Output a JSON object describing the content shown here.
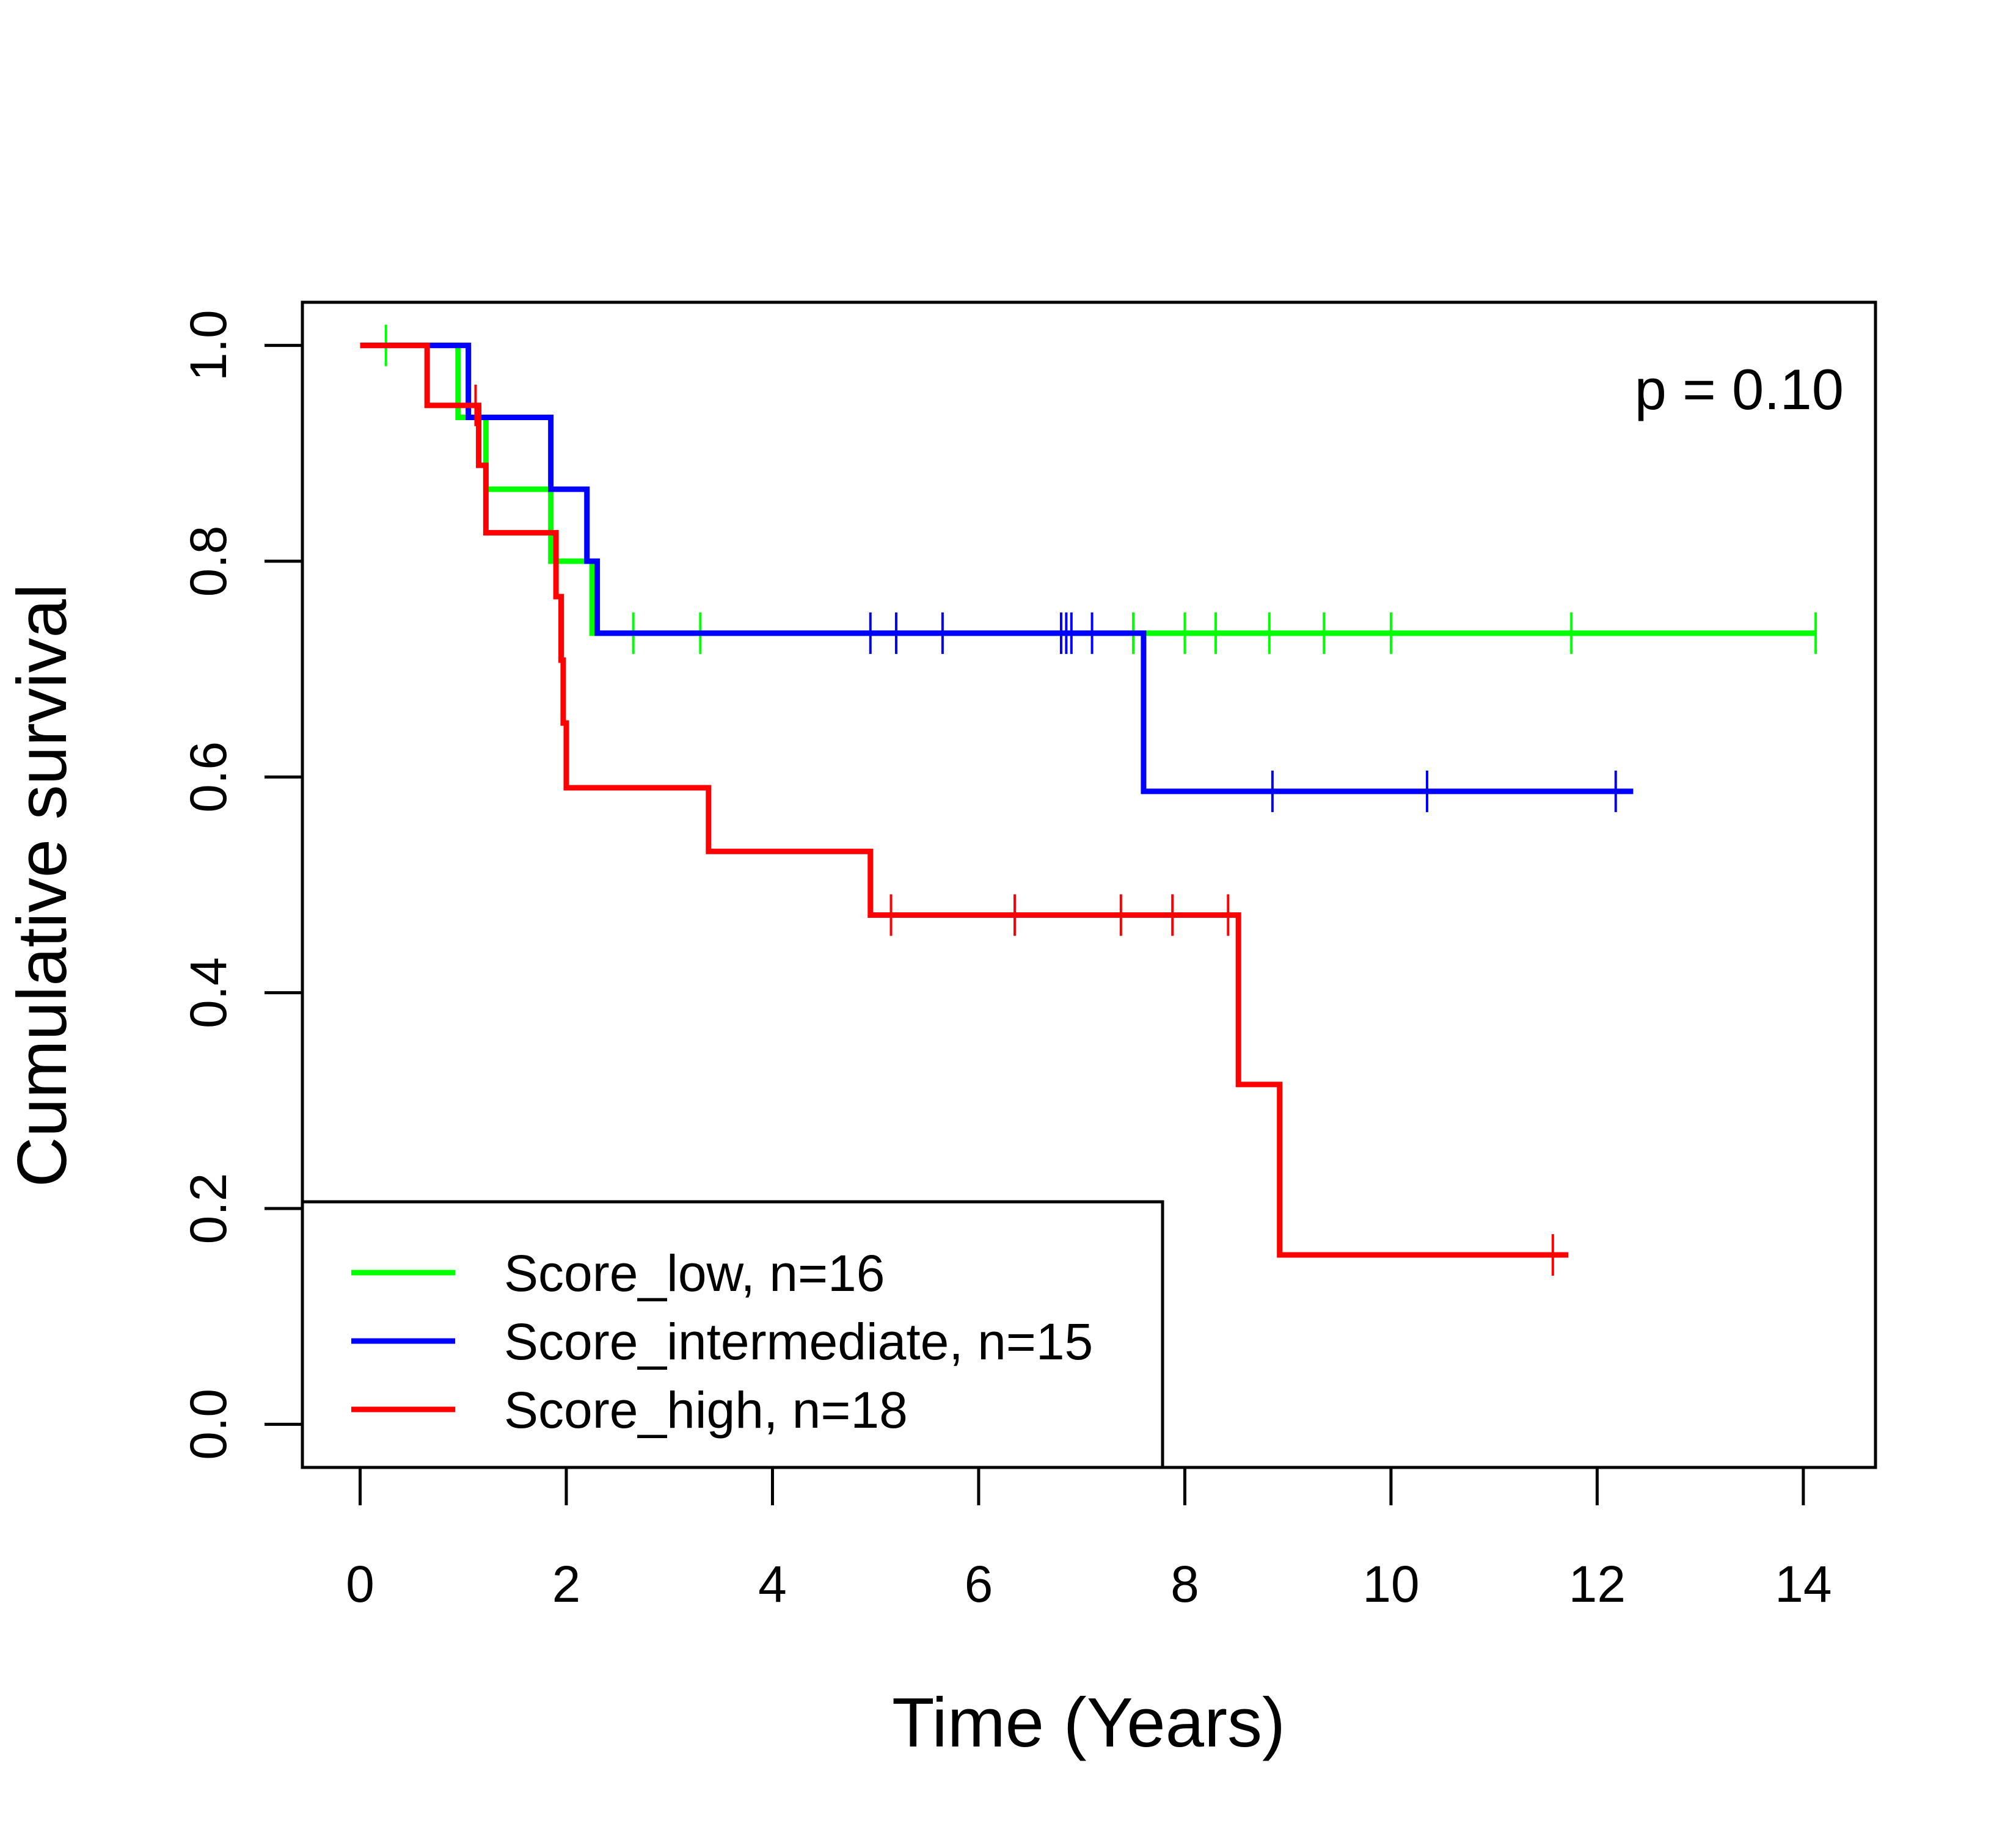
{
  "chart_data": {
    "type": "line",
    "title": "",
    "xlabel": "Time (Years)",
    "ylabel": "Cumulative survival",
    "xlim": [
      -0.56,
      14.7
    ],
    "ylim": [
      -0.04,
      1.04
    ],
    "xticks": [
      0,
      2,
      4,
      6,
      8,
      10,
      12,
      14
    ],
    "xtick_labels": [
      "0",
      "2",
      "4",
      "6",
      "8",
      "10",
      "12",
      "14"
    ],
    "yticks": [
      0.0,
      0.2,
      0.4,
      0.6,
      0.8,
      1.0
    ],
    "ytick_labels": [
      "0.0",
      "0.2",
      "0.4",
      "0.6",
      "0.8",
      "1.0"
    ],
    "grid": false,
    "legend_position": "bottom-left",
    "annotation": "p = 0.10",
    "series": [
      {
        "name": "Score_low, n=16",
        "color": "#00ff00",
        "steps": [
          [
            0,
            1.0
          ],
          [
            0.95,
            0.9333
          ],
          [
            1.22,
            0.8667
          ],
          [
            1.85,
            0.8
          ],
          [
            2.25,
            0.7333
          ],
          [
            14.12,
            0.7333
          ]
        ],
        "censor_x": [
          0.25,
          2.65,
          3.3,
          7.5,
          8.0,
          8.3,
          8.82,
          9.35,
          10.0,
          11.75,
          14.12
        ]
      },
      {
        "name": "Score_intermediate, n=15",
        "color": "#0000ff",
        "steps": [
          [
            0,
            1.0
          ],
          [
            1.05,
            0.9333
          ],
          [
            1.85,
            0.8667
          ],
          [
            2.2,
            0.8
          ],
          [
            2.3,
            0.7333
          ],
          [
            7.6,
            0.5867
          ],
          [
            12.35,
            0.5867
          ]
        ],
        "censor_x": [
          4.95,
          5.2,
          5.65,
          6.8,
          6.85,
          6.9,
          7.1,
          8.85,
          10.35,
          12.18
        ]
      },
      {
        "name": "Score_high, n=18",
        "color": "#ff0000",
        "steps": [
          [
            0,
            1.0
          ],
          [
            0.65,
            0.9444
          ],
          [
            1.15,
            0.8889
          ],
          [
            1.22,
            0.8264
          ],
          [
            1.9,
            0.7672
          ],
          [
            1.95,
            0.7083
          ],
          [
            1.97,
            0.65
          ],
          [
            2.0,
            0.59
          ],
          [
            3.38,
            0.531
          ],
          [
            4.95,
            0.472
          ],
          [
            8.52,
            0.315
          ],
          [
            8.92,
            0.157
          ],
          [
            11.72,
            0.157
          ]
        ],
        "censor_x": [
          1.12,
          5.15,
          6.35,
          7.38,
          7.88,
          8.42,
          11.57
        ]
      }
    ]
  }
}
